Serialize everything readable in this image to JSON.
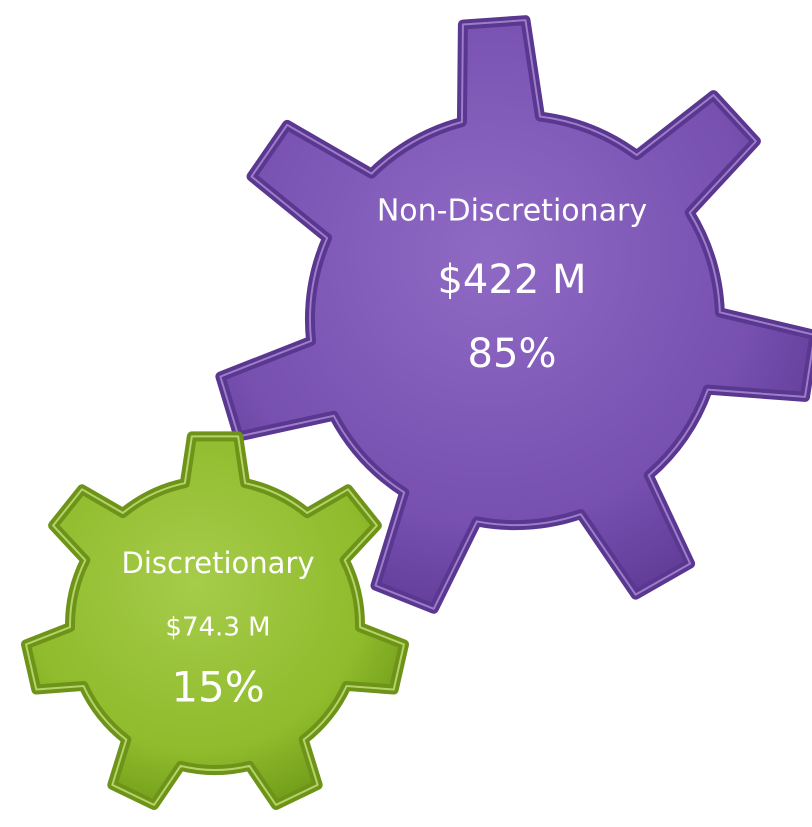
{
  "gears": [
    {
      "label": "Non-Discretionary",
      "amount": "$422 M",
      "share": "85%"
    },
    {
      "label": "Discretionary",
      "amount": "$74.3 M",
      "share": "15%"
    }
  ]
}
